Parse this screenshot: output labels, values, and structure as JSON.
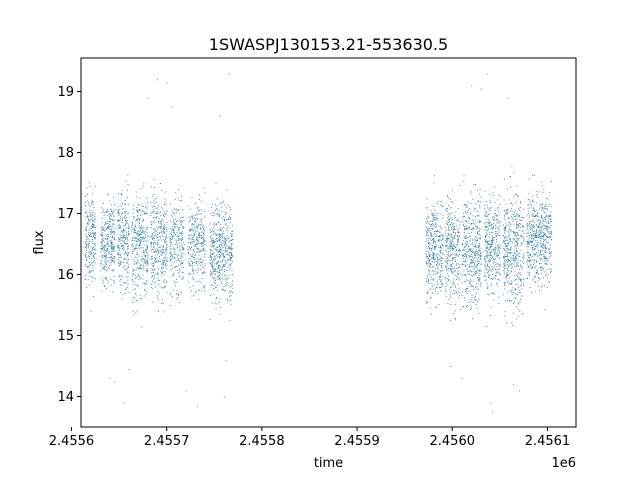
{
  "chart_data": {
    "type": "scatter",
    "title": "1SWASPJ130153.21-553630.5",
    "xlabel": "time",
    "ylabel": "flux",
    "x_offset_label": "1e6",
    "xlim": [
      2455610,
      2456130
    ],
    "ylim": [
      13.5,
      19.55
    ],
    "x_ticks": [
      2455600,
      2455700,
      2455800,
      2455900,
      2456000,
      2456100
    ],
    "x_tick_labels": [
      "2.4556",
      "2.4557",
      "2.4558",
      "2.4559",
      "2.4560",
      "2.4561"
    ],
    "y_ticks": [
      14,
      15,
      16,
      17,
      18,
      19
    ],
    "y_tick_labels": [
      "14",
      "15",
      "16",
      "17",
      "18",
      "19"
    ],
    "grid": false,
    "marker_color": "#1f77b4",
    "series": [
      {
        "segments": [
          {
            "x": [
              2455614,
              2455625
            ],
            "center": 16.6,
            "spread": 0.55,
            "density": 5
          },
          {
            "x": [
              2455630,
              2455645
            ],
            "center": 16.5,
            "spread": 0.5,
            "density": 5
          },
          {
            "x": [
              2455648,
              2455660
            ],
            "center": 16.6,
            "spread": 0.55,
            "density": 5
          },
          {
            "x": [
              2455663,
              2455680
            ],
            "center": 16.5,
            "spread": 0.6,
            "density": 5
          },
          {
            "x": [
              2455683,
              2455700
            ],
            "center": 16.5,
            "spread": 0.6,
            "density": 5
          },
          {
            "x": [
              2455703,
              2455718
            ],
            "center": 16.5,
            "spread": 0.55,
            "density": 4
          },
          {
            "x": [
              2455722,
              2455740
            ],
            "center": 16.5,
            "spread": 0.5,
            "density": 4
          },
          {
            "x": [
              2455745,
              2455769
            ],
            "center": 16.4,
            "spread": 0.55,
            "density": 5
          },
          {
            "x": [
              2455972,
              2455990
            ],
            "center": 16.4,
            "spread": 0.55,
            "density": 5
          },
          {
            "x": [
              2455992,
              2456008
            ],
            "center": 16.4,
            "spread": 0.6,
            "density": 5
          },
          {
            "x": [
              2456010,
              2456030
            ],
            "center": 16.4,
            "spread": 0.6,
            "density": 5
          },
          {
            "x": [
              2456033,
              2456050
            ],
            "center": 16.5,
            "spread": 0.6,
            "density": 5
          },
          {
            "x": [
              2456053,
              2456075
            ],
            "center": 16.4,
            "spread": 0.65,
            "density": 5
          },
          {
            "x": [
              2456078,
              2456104
            ],
            "center": 16.6,
            "spread": 0.55,
            "density": 5
          }
        ],
        "outliers": [
          [
            2455640,
            14.3
          ],
          [
            2455645,
            14.25
          ],
          [
            2455655,
            13.9
          ],
          [
            2455660,
            14.45
          ],
          [
            2455680,
            18.9
          ],
          [
            2455690,
            19.2
          ],
          [
            2455700,
            19.15
          ],
          [
            2455705,
            18.75
          ],
          [
            2455720,
            14.1
          ],
          [
            2455732,
            13.85
          ],
          [
            2455755,
            18.6
          ],
          [
            2455765,
            19.3
          ],
          [
            2455762,
            14.6
          ],
          [
            2455760,
            14.0
          ],
          [
            2456020,
            19.1
          ],
          [
            2456030,
            19.05
          ],
          [
            2456036,
            19.3
          ],
          [
            2456042,
            13.75
          ],
          [
            2456040,
            13.9
          ],
          [
            2456058,
            18.9
          ],
          [
            2456064,
            14.2
          ],
          [
            2456070,
            14.1
          ],
          [
            2455998,
            14.5
          ],
          [
            2456010,
            14.3
          ]
        ]
      }
    ]
  }
}
